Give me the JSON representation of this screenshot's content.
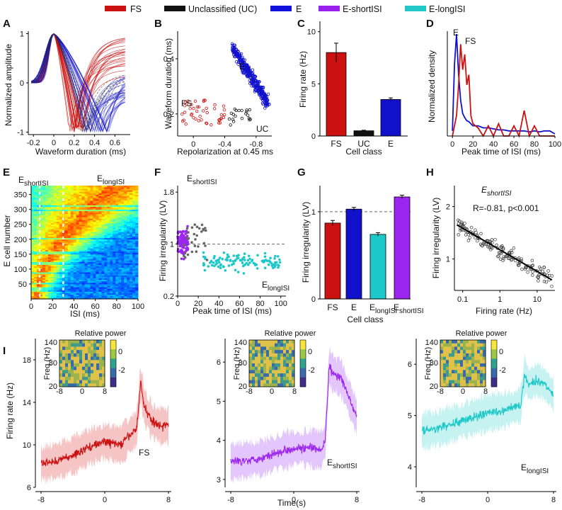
{
  "legend": [
    {
      "label": "FS",
      "color": "#cc1111"
    },
    {
      "label": "Unclassified (UC)",
      "color": "#111111"
    },
    {
      "label": "E",
      "color": "#1111dd"
    },
    {
      "label": "E-shortISI",
      "color": "#9922ee"
    },
    {
      "label": "E-longISI",
      "color": "#22c8c8"
    }
  ],
  "colors": {
    "FS": "#cc1111",
    "UC": "#111111",
    "E": "#1111cc",
    "Eshort": "#9b26ef",
    "Elong": "#1ec8c8"
  },
  "panels": {
    "A": {
      "letter": "A",
      "xlabel": "Waveform duration (ms)",
      "ylabel": "Normalized amplitude",
      "xticks": [
        "-0.2",
        "0",
        "0.2",
        "0.4",
        "0.6"
      ],
      "yticks": [
        "1",
        "0",
        "-1"
      ]
    },
    "B": {
      "letter": "B",
      "xlabel": "Repolarization at 0.45 ms",
      "ylabel": "Waveform duration (ms)",
      "xticks": [
        "0",
        "-0.4",
        "-0.8"
      ],
      "yticks": [
        "0.4",
        "0.2"
      ],
      "labels": {
        "fs": "FS",
        "e": "E",
        "uc": "UC"
      }
    },
    "C": {
      "letter": "C",
      "xlabel": "Cell class",
      "ylabel": "Firing rate (Hz)",
      "yticks": [
        "10",
        "5",
        "0"
      ]
    },
    "D": {
      "letter": "D",
      "xlabel": "Peak time of ISI (ms)",
      "ylabel": "Normalized density",
      "xticks": [
        "0",
        "20",
        "40",
        "60",
        "80",
        "100"
      ],
      "labels": {
        "e": "E",
        "fs": "FS"
      }
    },
    "E": {
      "letter": "E",
      "xlabel": "ISI (ms)",
      "ylabel": "E cell number",
      "xticks": [
        "0",
        "20",
        "40",
        "60",
        "80",
        "100"
      ],
      "yticks": [
        "350",
        "300",
        "250",
        "200",
        "150",
        "100",
        "50"
      ],
      "label_short_main": "E",
      "label_short_sub": "shortISI",
      "label_long_main": "E",
      "label_long_sub": "longISI"
    },
    "F": {
      "letter": "F",
      "xlabel": "Peak time of ISI (ms)",
      "ylabel": "Firing irregularity (LV)",
      "xticks": [
        "0",
        "20",
        "40",
        "60",
        "80",
        "100"
      ],
      "yticks": [
        "1.8",
        "1",
        "0.2"
      ],
      "label_short_main": "E",
      "label_short_sub": "shortISI",
      "label_long_main": "E",
      "label_long_sub": "longISI"
    },
    "G": {
      "letter": "G",
      "xlabel": "Cell class",
      "ylabel": "Firing irregularity (LV)",
      "yticks": [
        "1",
        "0"
      ]
    },
    "H": {
      "letter": "H",
      "xlabel": "Firing rate (Hz)",
      "ylabel": "Firing irregularity (LV)",
      "xticks": [
        "0.1",
        "1",
        "10"
      ],
      "yticks": [
        "2",
        "1"
      ],
      "title_main": "E",
      "title_sub": "shortISI",
      "stat": "R=-0.81, p<0.001"
    },
    "I": {
      "letter": "I",
      "ylabel": "Firing rate  (Hz)",
      "xlabel": "Time(s)",
      "inset": {
        "title": "Relative power",
        "ylabel": "Freq (Hz)",
        "yticks": [
          "140",
          "80",
          "20"
        ],
        "xticks": [
          "-8",
          "0",
          "8"
        ],
        "cbar_ticks": [
          "0",
          "-2"
        ]
      },
      "subpanels": [
        {
          "label_main": "FS",
          "label_sub": "",
          "yticks": [
            "18",
            "14",
            "10",
            "6"
          ],
          "xticks": [
            "-8",
            "0",
            "8"
          ]
        },
        {
          "label_main": "E",
          "label_sub": "shortISI",
          "yticks": [
            "6",
            "5",
            "4",
            "3"
          ],
          "xticks": [
            "-8",
            "0",
            "8"
          ]
        },
        {
          "label_main": "E",
          "label_sub": "longISI",
          "yticks": [
            "6",
            "5",
            "4"
          ],
          "xticks": [
            "-8",
            "0",
            "8"
          ]
        }
      ]
    }
  },
  "chart_data": [
    {
      "panel": "A",
      "type": "line",
      "title": "",
      "xlabel": "Waveform duration (ms)",
      "ylabel": "Normalized amplitude",
      "xlim": [
        -0.25,
        0.75
      ],
      "ylim": [
        -1.05,
        1.05
      ],
      "series": [
        {
          "name": "FS",
          "trough_range_ms": [
            0.15,
            0.3
          ],
          "n_shown": 25
        },
        {
          "name": "E",
          "trough_range_ms": [
            0.3,
            0.55
          ],
          "n_shown": 30
        },
        {
          "name": "UC",
          "trough_range_ms": [
            0.25,
            0.4
          ],
          "n_shown": 8
        }
      ]
    },
    {
      "panel": "B",
      "type": "scatter",
      "xlabel": "Repolarization at 0.45 ms",
      "ylabel": "Waveform duration (ms)",
      "x_axis_reversed": true,
      "xlim": [
        0.2,
        -1.0
      ],
      "ylim": [
        0.12,
        0.5
      ],
      "series": [
        {
          "name": "FS",
          "x_range": [
            -0.4,
            0.15
          ],
          "y_range": [
            0.16,
            0.25
          ],
          "n": 45
        },
        {
          "name": "UC",
          "x_range": [
            -0.75,
            -0.45
          ],
          "y_range": [
            0.16,
            0.22
          ],
          "n": 20
        },
        {
          "name": "E",
          "x_range": [
            -0.95,
            -0.5
          ],
          "y_range": [
            0.23,
            0.48
          ],
          "n": 350
        }
      ]
    },
    {
      "panel": "C",
      "type": "bar",
      "xlabel": "Cell class",
      "ylabel": "Firing rate (Hz)",
      "ylim": [
        0,
        11
      ],
      "categories": [
        "FS",
        "UC",
        "E"
      ],
      "values": [
        8.0,
        0.5,
        3.5
      ],
      "errors": [
        0.9,
        0.05,
        0.15
      ]
    },
    {
      "panel": "D",
      "type": "line",
      "xlabel": "Peak time of ISI (ms)",
      "ylabel": "Normalized density",
      "xlim": [
        -5,
        100
      ],
      "ylim": [
        0,
        1
      ],
      "x": [
        0,
        2,
        4,
        6,
        8,
        10,
        12,
        14,
        16,
        18,
        20,
        25,
        30,
        35,
        40,
        45,
        50,
        55,
        60,
        65,
        70,
        75,
        80,
        85,
        90,
        95,
        100
      ],
      "series": [
        {
          "name": "E",
          "values": [
            0.05,
            0.7,
            1.0,
            0.6,
            0.35,
            0.22,
            0.18,
            0.15,
            0.14,
            0.12,
            0.1,
            0.1,
            0.08,
            0.08,
            0.07,
            0.06,
            0.06,
            0.05,
            0.05,
            0.05,
            0.05,
            0.04,
            0.05,
            0.04,
            0.05,
            0.05,
            0.02
          ]
        },
        {
          "name": "FS",
          "values": [
            0.0,
            0.1,
            0.2,
            0.5,
            0.9,
            0.65,
            0.8,
            0.5,
            0.6,
            0.2,
            0.12,
            0.08,
            0.0,
            0.1,
            0.0,
            0.12,
            0.0,
            0.0,
            0.1,
            0.0,
            0.25,
            0.0,
            0.1,
            0.0,
            0.0,
            0.0,
            0.0
          ]
        }
      ]
    },
    {
      "panel": "E",
      "type": "heatmap",
      "xlabel": "ISI (ms)",
      "ylabel": "E cell number",
      "xlim": [
        0,
        100
      ],
      "ylim": [
        0,
        380
      ],
      "colormap": "jet",
      "dashed_x": [
        8,
        30
      ]
    },
    {
      "panel": "F",
      "type": "scatter",
      "xlabel": "Peak time of ISI (ms)",
      "ylabel": "Firing irregularity (LV)",
      "xlim": [
        0,
        105
      ],
      "ylim": [
        0.2,
        1.9
      ],
      "reference_y": 1,
      "series": [
        {
          "name": "E-shortISI",
          "x_range": [
            0,
            10
          ],
          "y_range": [
            0.7,
            1.8
          ],
          "n": 120
        },
        {
          "name": "E-longISI",
          "x_range": [
            25,
            100
          ],
          "y_range": [
            0.35,
            1.0
          ],
          "n": 110
        },
        {
          "name": "other",
          "x_range": [
            5,
            30
          ],
          "y_range": [
            0.75,
            1.3
          ],
          "n": 30
        }
      ]
    },
    {
      "panel": "G",
      "type": "bar",
      "xlabel": "Cell class",
      "ylabel": "Firing irregularity (LV)",
      "ylim": [
        0,
        1.3
      ],
      "reference_y": 1,
      "categories": [
        "FS",
        "E",
        "E-longISI",
        "E-shortISI"
      ],
      "values": [
        0.87,
        1.03,
        0.74,
        1.17
      ],
      "errors": [
        0.03,
        0.02,
        0.02,
        0.02
      ]
    },
    {
      "panel": "H",
      "type": "scatter",
      "xlabel": "Firing rate (Hz)",
      "ylabel": "Firing irregularity (LV)",
      "x_scale": "log",
      "xlim": [
        0.06,
        30
      ],
      "ylim": [
        0.4,
        2.4
      ],
      "fit": {
        "x": [
          0.07,
          25
        ],
        "y": [
          1.65,
          0.6
        ]
      },
      "R": -0.81,
      "p": "<0.001",
      "n": 150
    },
    {
      "panel": "I-FS",
      "type": "line",
      "xlabel": "Time(s)",
      "ylabel": "Firing rate (Hz)",
      "xlim": [
        -8,
        8
      ],
      "ylim": [
        6,
        20
      ],
      "x": [
        -8,
        -6,
        -4,
        -2,
        0,
        2,
        3,
        4,
        4.5,
        5,
        6,
        7,
        8
      ],
      "values": [
        8.2,
        8.5,
        9.0,
        9.8,
        10.3,
        10.0,
        10.8,
        11.5,
        15.8,
        13.5,
        12.2,
        11.8,
        11.8
      ]
    },
    {
      "panel": "I-E-shortISI",
      "type": "line",
      "xlabel": "Time(s)",
      "ylabel": "Firing rate (Hz)",
      "xlim": [
        -8,
        8
      ],
      "ylim": [
        2.8,
        6.6
      ],
      "x": [
        -8,
        -6,
        -4,
        -2,
        0,
        2,
        3.5,
        4,
        4.5,
        5,
        6,
        7,
        8
      ],
      "values": [
        3.45,
        3.5,
        3.55,
        3.7,
        3.8,
        3.8,
        3.75,
        4.0,
        5.9,
        5.7,
        5.6,
        5.1,
        4.6
      ]
    },
    {
      "panel": "I-E-longISI",
      "type": "line",
      "xlabel": "Time(s)",
      "ylabel": "Firing rate (Hz)",
      "xlim": [
        -8,
        8
      ],
      "ylim": [
        3.6,
        6.5
      ],
      "x": [
        -8,
        -6,
        -4,
        -2,
        0,
        2,
        3,
        4,
        4.5,
        5,
        6,
        7,
        8
      ],
      "values": [
        4.7,
        4.75,
        4.85,
        4.95,
        5.05,
        5.1,
        5.15,
        5.2,
        5.8,
        5.6,
        5.7,
        5.6,
        5.4
      ]
    }
  ]
}
